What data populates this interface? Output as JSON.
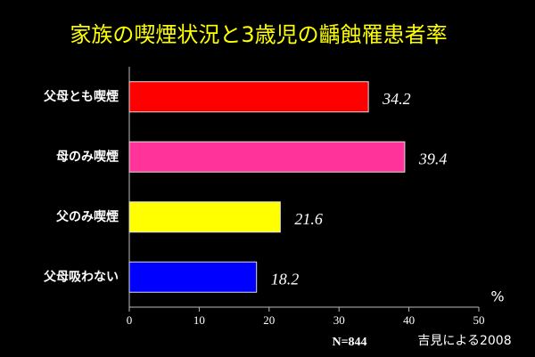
{
  "chart_data": {
    "type": "hbar",
    "title": "家族の喫煙状況と3歳児の齲蝕罹患者率",
    "categories": [
      "父母とも喫煙",
      "母のみ喫煙",
      "父のみ喫煙",
      "父母吸わない"
    ],
    "values": [
      34.2,
      39.4,
      21.6,
      18.2
    ],
    "colors": [
      "#ff0000",
      "#ff3399",
      "#ffff00",
      "#0000ff"
    ],
    "xlim": [
      0,
      50
    ],
    "xticks": [
      0,
      10,
      20,
      30,
      40,
      50
    ],
    "x_label": "%",
    "annotations": [
      "N=844",
      "吉見による2008"
    ]
  }
}
